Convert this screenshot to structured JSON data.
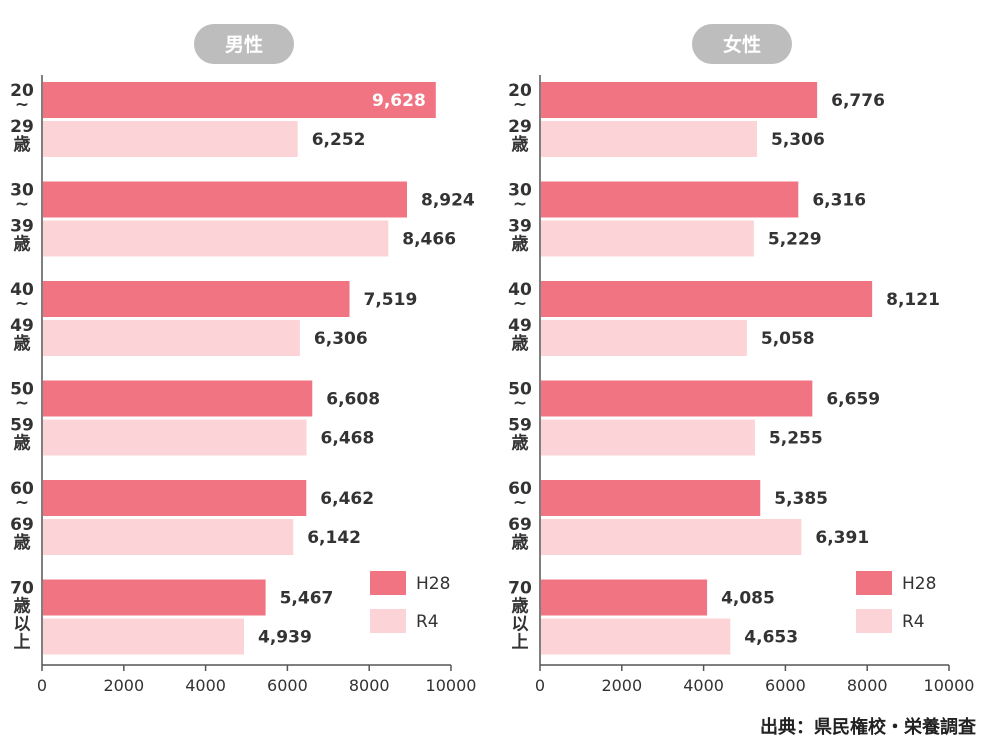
{
  "colors": {
    "h28": "#f07482",
    "r4": "#fcd4d7",
    "pill": "#bdbdbd",
    "axis": "#555555"
  },
  "source": "出典：県民権校・栄養調査",
  "chart_data": [
    {
      "type": "bar",
      "orientation": "horizontal",
      "title": "男性",
      "categories": [
        [
          "20",
          "~",
          "29",
          "歳"
        ],
        [
          "30",
          "~",
          "39",
          "歳"
        ],
        [
          "40",
          "~",
          "49",
          "歳"
        ],
        [
          "50",
          "~",
          "59",
          "歳"
        ],
        [
          "60",
          "~",
          "69",
          "歳"
        ],
        [
          "70",
          "歳",
          "以",
          "上"
        ]
      ],
      "series": [
        {
          "name": "H28",
          "values": [
            9628,
            8924,
            7519,
            6608,
            6462,
            5467
          ]
        },
        {
          "name": "R4",
          "values": [
            6252,
            8466,
            6306,
            6468,
            6142,
            4939
          ]
        }
      ],
      "value_labels": [
        [
          "9,628",
          "8,924",
          "7,519",
          "6,608",
          "6,462",
          "5,467"
        ],
        [
          "6,252",
          "8,466",
          "6,306",
          "6,468",
          "6,142",
          "4,939"
        ]
      ],
      "xlim": [
        0,
        10000
      ],
      "xticks": [
        "0",
        "2000",
        "4000",
        "6000",
        "8000",
        "10000"
      ],
      "legend": "bottom-right"
    },
    {
      "type": "bar",
      "orientation": "horizontal",
      "title": "女性",
      "categories": [
        [
          "20",
          "~",
          "29",
          "歳"
        ],
        [
          "30",
          "~",
          "39",
          "歳"
        ],
        [
          "40",
          "~",
          "49",
          "歳"
        ],
        [
          "50",
          "~",
          "59",
          "歳"
        ],
        [
          "60",
          "~",
          "69",
          "歳"
        ],
        [
          "70",
          "歳",
          "以",
          "上"
        ]
      ],
      "series": [
        {
          "name": "H28",
          "values": [
            6776,
            6316,
            8121,
            6659,
            5385,
            4085
          ]
        },
        {
          "name": "R4",
          "values": [
            5306,
            5229,
            5058,
            5255,
            6391,
            4653
          ]
        }
      ],
      "value_labels": [
        [
          "6,776",
          "6,316",
          "8,121",
          "6,659",
          "5,385",
          "4,085"
        ],
        [
          "5,306",
          "5,229",
          "5,058",
          "5,255",
          "6,391",
          "4,653"
        ]
      ],
      "xlim": [
        0,
        10000
      ],
      "xticks": [
        "0",
        "2000",
        "4000",
        "6000",
        "8000",
        "10000"
      ],
      "legend": "bottom-right"
    }
  ]
}
